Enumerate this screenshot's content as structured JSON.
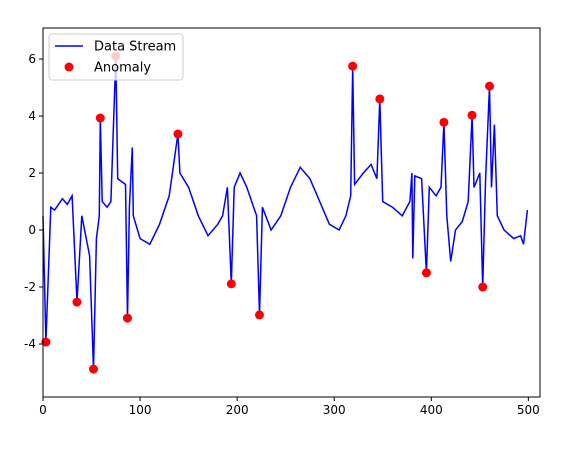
{
  "chart_data": {
    "type": "line",
    "xlim": [
      0,
      512
    ],
    "xticks": [
      0,
      100,
      200,
      300,
      400,
      500
    ],
    "ylim": [
      -5.86,
      7.09
    ],
    "yticks": [
      -4,
      -2,
      0,
      2,
      4,
      6
    ],
    "legend": "upper left",
    "series": [
      {
        "name": "Data Stream",
        "type": "line",
        "color": "#0000ff",
        "x": [
          0,
          3,
          8,
          12,
          20,
          25,
          30,
          35,
          40,
          48,
          52,
          55,
          58,
          59,
          61,
          66,
          70,
          75,
          77,
          85,
          87,
          89,
          92,
          93,
          100,
          110,
          120,
          130,
          139,
          141,
          150,
          160,
          170,
          180,
          185,
          190,
          194,
          197,
          203,
          210,
          220,
          223,
          226,
          235,
          245,
          255,
          265,
          275,
          285,
          295,
          305,
          312,
          317,
          319,
          321,
          330,
          338,
          344,
          347,
          350,
          360,
          370,
          378,
          380,
          381,
          383,
          390,
          395,
          398,
          405,
          410,
          413,
          416,
          420,
          425,
          432,
          438,
          442,
          444,
          450,
          453,
          456,
          460,
          462,
          465,
          468,
          475,
          485,
          492,
          495,
          499
        ],
        "values": [
          0.5,
          -3.93,
          0.8,
          0.7,
          1.1,
          0.9,
          1.2,
          -2.53,
          0.5,
          -0.9,
          -4.88,
          -0.3,
          0.5,
          3.93,
          1.0,
          0.8,
          1.0,
          6.1,
          1.8,
          1.6,
          -3.09,
          0.8,
          2.9,
          0.5,
          -0.3,
          -0.5,
          0.2,
          1.2,
          3.37,
          2.0,
          1.5,
          0.5,
          -0.2,
          0.2,
          0.5,
          1.5,
          -1.89,
          1.5,
          2.0,
          1.5,
          0.5,
          -2.98,
          0.8,
          0.0,
          0.5,
          1.5,
          2.2,
          1.8,
          1.0,
          0.2,
          0.0,
          0.5,
          1.2,
          5.75,
          1.6,
          2.0,
          2.3,
          1.8,
          4.6,
          1.0,
          0.8,
          0.5,
          1.0,
          2.0,
          -1.0,
          1.9,
          1.8,
          -1.5,
          1.5,
          1.2,
          1.5,
          3.78,
          0.5,
          -1.1,
          0.0,
          0.3,
          1.0,
          4.03,
          1.5,
          2.0,
          -2.0,
          1.8,
          5.05,
          1.5,
          3.7,
          0.5,
          0.0,
          -0.3,
          -0.2,
          -0.5,
          0.7
        ]
      },
      {
        "name": "Anomaly",
        "type": "scatter",
        "color": "#ff0000",
        "x": [
          3,
          35,
          52,
          59,
          75,
          87,
          139,
          194,
          223,
          319,
          347,
          395,
          413,
          442,
          453,
          460
        ],
        "values": [
          -3.93,
          -2.53,
          -4.88,
          3.93,
          6.1,
          -3.09,
          3.37,
          -1.89,
          -2.98,
          5.75,
          4.6,
          -1.5,
          3.78,
          4.03,
          -2.0,
          5.05
        ]
      }
    ]
  }
}
